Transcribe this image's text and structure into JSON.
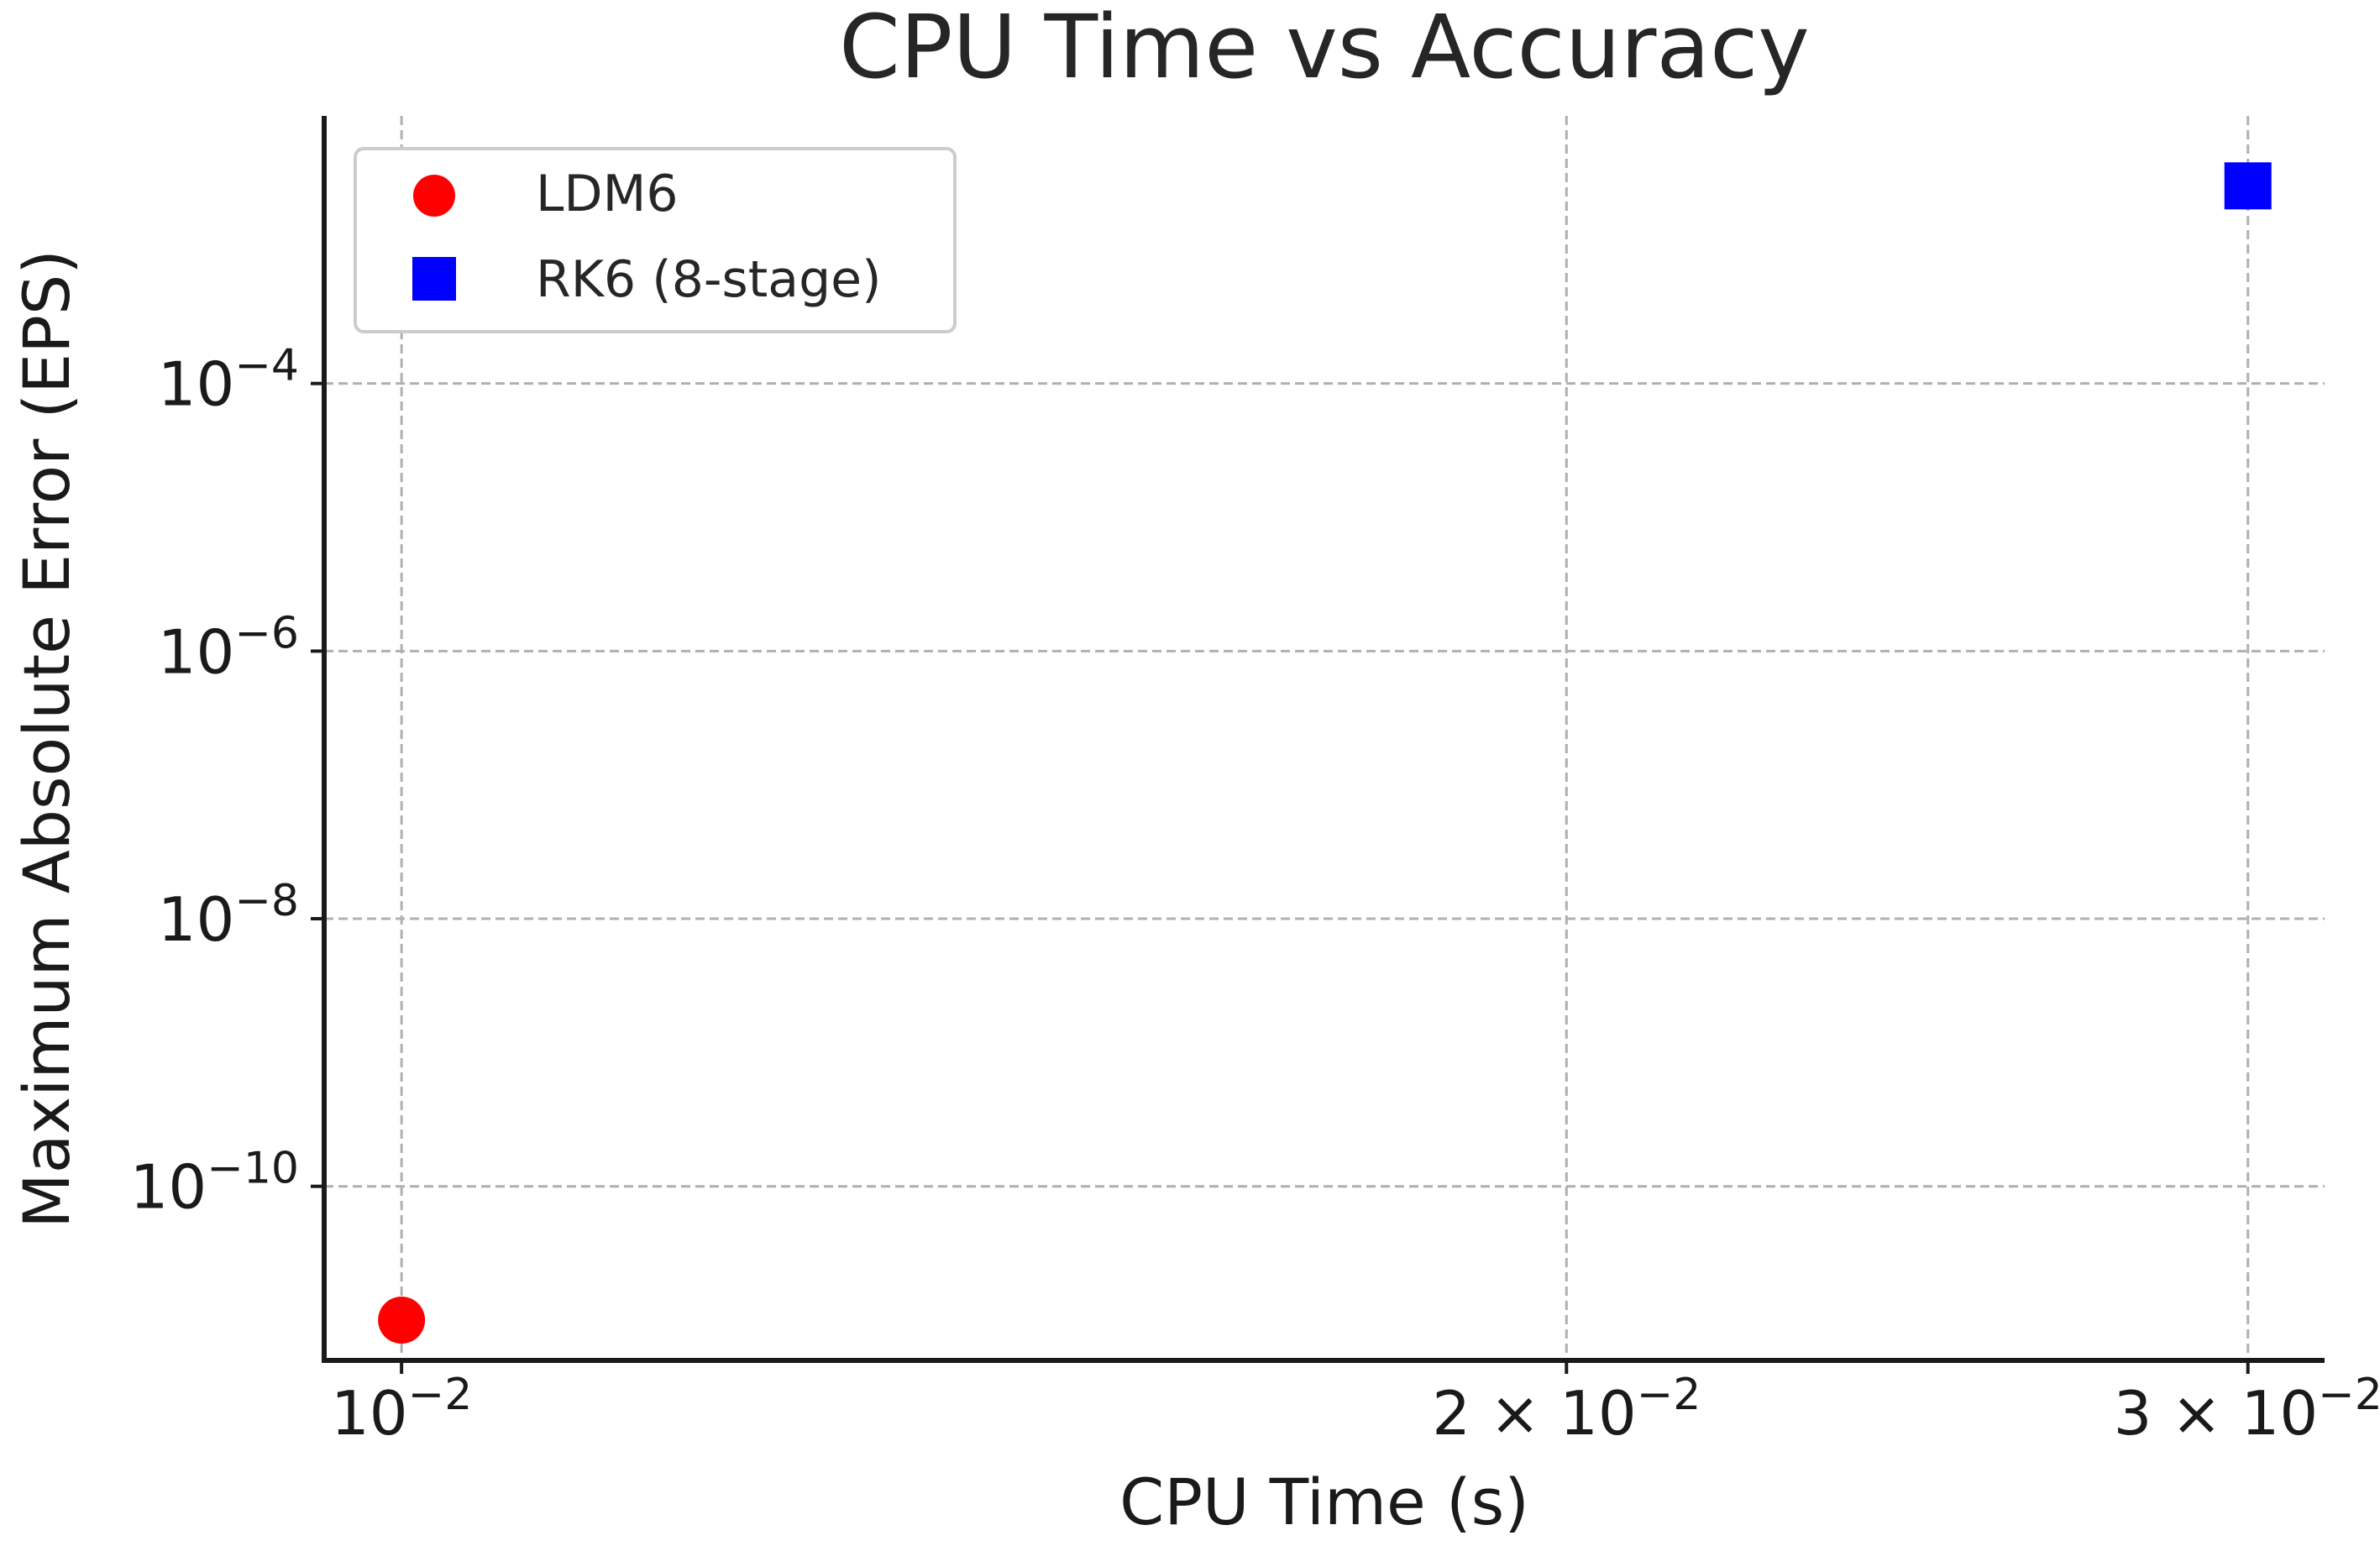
{
  "chart_data": {
    "type": "scatter",
    "title": "CPU Time vs Accuracy",
    "xlabel": "CPU Time (s)",
    "ylabel": "Maximum Absolute Error (EPS)",
    "xscale": "log",
    "yscale": "log",
    "xlim": [
      0.00955,
      0.0314
    ],
    "ylim": [
      5e-12,
      0.01
    ],
    "grid": true,
    "legend_position": "top-left",
    "x_ticks": [
      {
        "value": 0.01,
        "label_base": "10",
        "label_exp": "−2",
        "label_prefix": ""
      },
      {
        "value": 0.02,
        "label_base": "10",
        "label_exp": "−2",
        "label_prefix": "2 × "
      },
      {
        "value": 0.03,
        "label_base": "10",
        "label_exp": "−2",
        "label_prefix": "3 × "
      }
    ],
    "y_ticks": [
      {
        "value": 0.0001,
        "label_base": "10",
        "label_exp": "−4"
      },
      {
        "value": 1e-06,
        "label_base": "10",
        "label_exp": "−6"
      },
      {
        "value": 1e-08,
        "label_base": "10",
        "label_exp": "−8"
      },
      {
        "value": 1e-10,
        "label_base": "10",
        "label_exp": "−10"
      }
    ],
    "series": [
      {
        "name": "LDM6",
        "marker": "circle",
        "color": "#ff0000",
        "points": [
          {
            "x": 0.01,
            "y": 1e-11
          }
        ]
      },
      {
        "name": "RK6 (8-stage)",
        "marker": "square",
        "color": "#0000ff",
        "points": [
          {
            "x": 0.03,
            "y": 0.003
          }
        ]
      }
    ],
    "colors": {
      "axis": "#1a1a1a",
      "grid": "#b0b0b0",
      "text": "#262626",
      "legend_border": "#cccccc"
    }
  }
}
